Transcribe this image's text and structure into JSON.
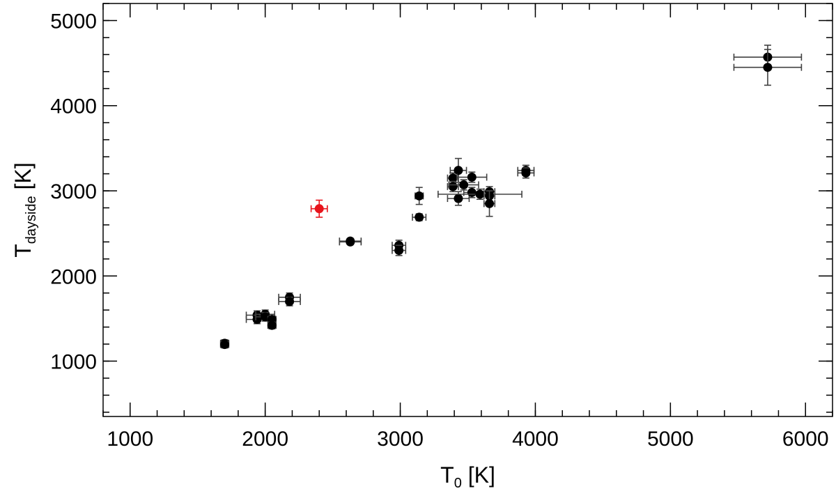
{
  "chart_data": {
    "type": "scatter",
    "title": "",
    "xlabel": {
      "main": "T",
      "sub": "0",
      "unit": " [K]"
    },
    "ylabel": {
      "main": "T",
      "sub": "dayside",
      "unit": " [K]"
    },
    "xlim": [
      800,
      6200
    ],
    "ylim": [
      350,
      5200
    ],
    "xticks": [
      1000,
      2000,
      3000,
      4000,
      5000,
      6000
    ],
    "yticks": [
      1000,
      2000,
      3000,
      4000,
      5000
    ],
    "x_minor_step": 200,
    "y_minor_step": 200,
    "grid": false,
    "colors": {
      "default": "#000000",
      "highlight": "#e8141c",
      "errorbar": "#404040"
    },
    "series": [
      {
        "color": "#000000",
        "points": [
          {
            "x": 1700,
            "y": 1210,
            "xerr": 30,
            "yerr": 40
          },
          {
            "x": 1700,
            "y": 1195,
            "xerr": 30,
            "yerr": 40
          },
          {
            "x": 1940,
            "y": 1540,
            "xerr": 80,
            "yerr": 50
          },
          {
            "x": 1940,
            "y": 1490,
            "xerr": 80,
            "yerr": 50
          },
          {
            "x": 2000,
            "y": 1550,
            "xerr": 70,
            "yerr": 50
          },
          {
            "x": 2000,
            "y": 1520,
            "xerr": 70,
            "yerr": 50
          },
          {
            "x": 2050,
            "y": 1490,
            "xerr": 30,
            "yerr": 40
          },
          {
            "x": 2050,
            "y": 1420,
            "xerr": 30,
            "yerr": 40
          },
          {
            "x": 2180,
            "y": 1750,
            "xerr": 80,
            "yerr": 50
          },
          {
            "x": 2180,
            "y": 1700,
            "xerr": 80,
            "yerr": 50
          },
          {
            "x": 2630,
            "y": 2410,
            "xerr": 80,
            "yerr": 30
          },
          {
            "x": 2630,
            "y": 2400,
            "xerr": 80,
            "yerr": 30
          },
          {
            "x": 2990,
            "y": 2360,
            "xerr": 50,
            "yerr": 60
          },
          {
            "x": 2990,
            "y": 2300,
            "xerr": 50,
            "yerr": 60
          },
          {
            "x": 3140,
            "y": 2940,
            "xerr": 30,
            "yerr": 100
          },
          {
            "x": 3140,
            "y": 2690,
            "xerr": 50,
            "yerr": 40
          },
          {
            "x": 3390,
            "y": 3150,
            "xerr": 40,
            "yerr": 60
          },
          {
            "x": 3390,
            "y": 3050,
            "xerr": 40,
            "yerr": 60
          },
          {
            "x": 3430,
            "y": 3240,
            "xerr": 60,
            "yerr": 140
          },
          {
            "x": 3430,
            "y": 2910,
            "xerr": 80,
            "yerr": 80
          },
          {
            "x": 3470,
            "y": 3070,
            "xerr": 110,
            "yerr": 60
          },
          {
            "x": 3530,
            "y": 3160,
            "xerr": 110,
            "yerr": 60
          },
          {
            "x": 3530,
            "y": 2980,
            "xerr": 60,
            "yerr": 60
          },
          {
            "x": 3590,
            "y": 2960,
            "xerr": 310,
            "yerr": 60
          },
          {
            "x": 3660,
            "y": 2990,
            "xerr": 40,
            "yerr": 60
          },
          {
            "x": 3660,
            "y": 2940,
            "xerr": 40,
            "yerr": 60
          },
          {
            "x": 3660,
            "y": 2850,
            "xerr": 40,
            "yerr": 150
          },
          {
            "x": 3930,
            "y": 3240,
            "xerr": 60,
            "yerr": 60
          },
          {
            "x": 3930,
            "y": 3210,
            "xerr": 60,
            "yerr": 60
          },
          {
            "x": 5720,
            "y": 4570,
            "xerr": 250,
            "yerr": 140
          },
          {
            "x": 5720,
            "y": 4450,
            "xerr": 250,
            "yerr": 210
          }
        ]
      },
      {
        "color": "#e8141c",
        "points": [
          {
            "x": 2400,
            "y": 2790,
            "xerr": 60,
            "yerr": 100
          }
        ]
      }
    ]
  }
}
